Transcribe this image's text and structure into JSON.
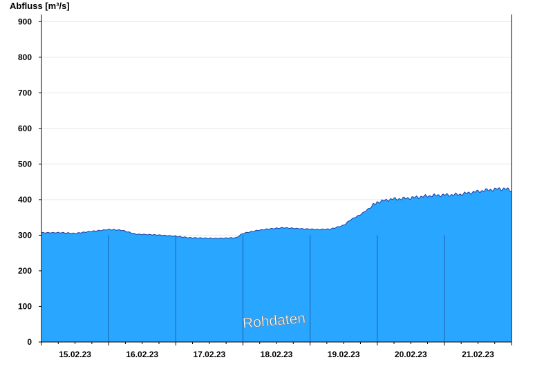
{
  "chart_data": {
    "type": "area",
    "ylabel": "Abfluss [m³/s]",
    "watermark": "Rohdaten",
    "ylim": [
      0,
      920
    ],
    "xlim": [
      0,
      7
    ],
    "y_ticks": [
      0,
      100,
      200,
      300,
      400,
      500,
      600,
      700,
      800,
      900
    ],
    "day_labels": [
      "15.02.23",
      "16.02.23",
      "17.02.23",
      "18.02.23",
      "19.02.23",
      "20.02.23",
      "21.02.23"
    ],
    "fill_color": "#29a6ff",
    "line_color": "#1a3fa0",
    "grid": true,
    "series": [
      {
        "x": [
          0,
          0.3,
          0.5,
          0.7,
          1.0,
          1.2,
          1.4,
          1.7,
          2.0,
          2.2,
          2.4,
          2.6,
          2.9,
          3.0,
          3.2,
          3.4,
          3.6,
          3.9,
          4.1,
          4.3,
          4.5,
          4.6,
          4.75,
          4.9,
          5.0,
          5.2,
          5.4,
          5.6,
          5.8,
          6.0,
          6.2,
          6.4,
          6.6,
          6.8,
          6.9,
          7.0
        ],
        "values": [
          307,
          307,
          305,
          310,
          316,
          314,
          303,
          301,
          297,
          293,
          292,
          291,
          293,
          305,
          313,
          318,
          321,
          318,
          316,
          317,
          328,
          343,
          358,
          378,
          393,
          401,
          403,
          407,
          411,
          413,
          414,
          420,
          426,
          430,
          431,
          425
        ]
      }
    ]
  }
}
